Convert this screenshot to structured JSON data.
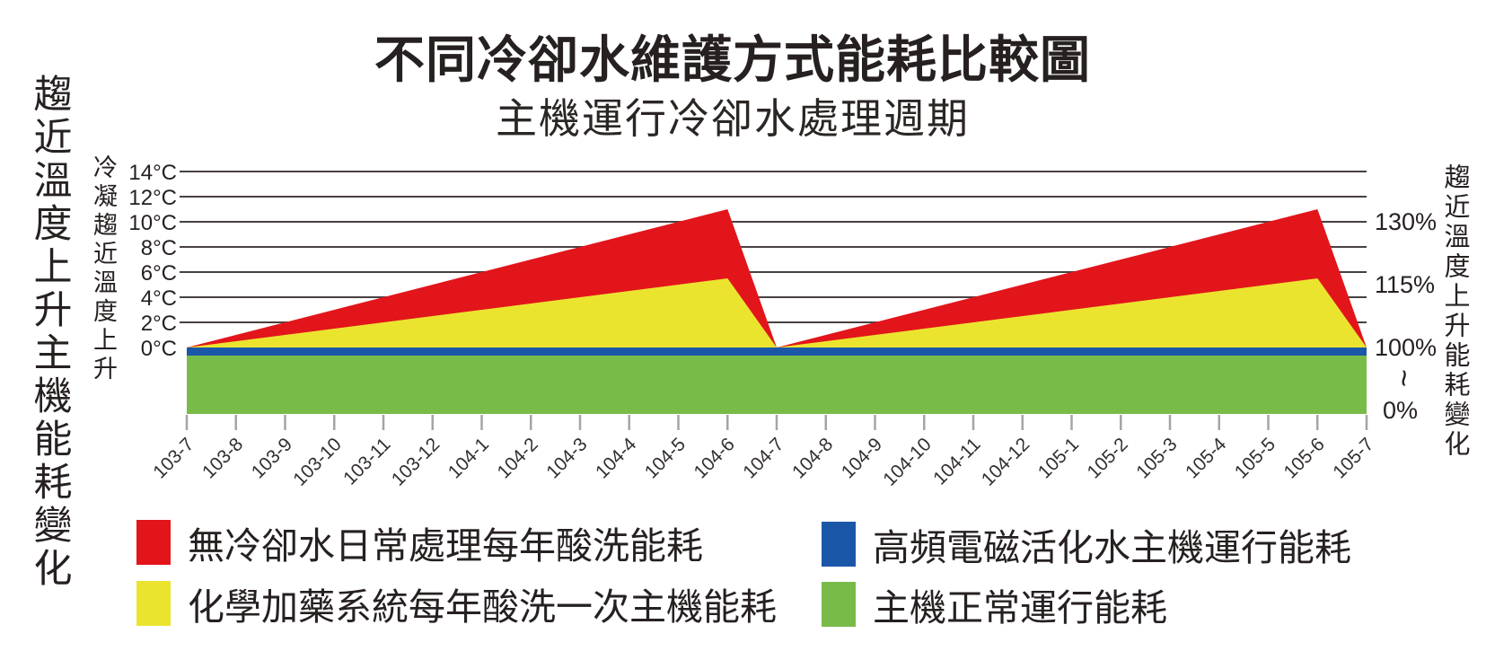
{
  "title": "不同冷卻水維護方式能耗比較圖",
  "subtitle": "主機運行冷卻水處理週期",
  "left_outer_label": "趨近溫度上升主機能耗變化",
  "left_axis": {
    "label": "冷凝趨近溫度上升",
    "unit": "°C",
    "ticks": [
      {
        "label": "14°C",
        "value": 14
      },
      {
        "label": "12°C",
        "value": 12
      },
      {
        "label": "10°C",
        "value": 10
      },
      {
        "label": "8°C",
        "value": 8
      },
      {
        "label": "6°C",
        "value": 6
      },
      {
        "label": "4°C",
        "value": 4
      },
      {
        "label": "2°C",
        "value": 2
      },
      {
        "label": "0°C",
        "value": 0
      }
    ]
  },
  "right_axis": {
    "label": "趨近溫度上升能耗變化",
    "ticks": [
      {
        "label": "130%",
        "value_c": 10
      },
      {
        "label": "115%",
        "value_c": 5
      },
      {
        "label": "100%",
        "value_c": 0
      },
      {
        "label": "~",
        "axis_break": true
      },
      {
        "label": "0%",
        "baseline_bottom": true
      }
    ],
    "note": "0°C approach = 100% energy, 5°C = 115%, 10°C = 130%; wavy mark = axis break between 0% and 100%"
  },
  "legend": [
    {
      "name": "acid-wash-no-treatment",
      "color": "#e2151b",
      "label": "無冷卻水日常處理每年酸洗能耗"
    },
    {
      "name": "chemical-dosing-yearly-acid-wash",
      "color": "#ebe42f",
      "label": "化學加藥系統每年酸洗一次主機能耗"
    },
    {
      "name": "hf-electromagnetic-activated-water",
      "color": "#1b57a8",
      "label": "高頻電磁活化水主機運行能耗"
    },
    {
      "name": "normal-operation",
      "color": "#79bb48",
      "label": "主機正常運行能耗"
    }
  ],
  "colors": {
    "red": "#e2151b",
    "yellow": "#ebe42f",
    "blue": "#1b57a8",
    "green": "#79bb48",
    "gridline": "#474140",
    "tick": "#a6a4a5",
    "x_label": "#332f2e",
    "text": "#262120"
  },
  "chart_data": {
    "type": "area",
    "title": "不同冷卻水維護方式能耗比較圖",
    "subtitle": "主機運行冷卻水處理週期",
    "x": [
      "103-7",
      "103-8",
      "103-9",
      "103-10",
      "103-11",
      "103-12",
      "104-1",
      "104-2",
      "104-3",
      "104-4",
      "104-5",
      "104-6",
      "104-7",
      "104-8",
      "104-9",
      "104-10",
      "104-11",
      "104-12",
      "105-1",
      "105-2",
      "105-3",
      "105-4",
      "105-5",
      "105-6",
      "105-7"
    ],
    "xlabel": "",
    "y_left": {
      "label": "冷凝趨近溫度上升",
      "unit": "°C",
      "min": 0,
      "max": 14,
      "step": 2
    },
    "y_right": {
      "label": "趨近溫度上升能耗變化",
      "unit": "%",
      "tick_labels": [
        "130%",
        "115%",
        "100%",
        "~",
        "0%"
      ]
    },
    "grid": "horizontal only, every 2°C from 2 to 14",
    "legend_position": "bottom, two columns",
    "series": [
      {
        "name": "無冷卻水日常處理每年酸洗能耗",
        "color_key": "red",
        "unit": "°C approach rise",
        "values": [
          0,
          1,
          2,
          3,
          4,
          5,
          6,
          7,
          8,
          9,
          10,
          11,
          0,
          1,
          2,
          3,
          4,
          5,
          6,
          7,
          8,
          9,
          10,
          11,
          0
        ],
        "peak_percent": "≈130%"
      },
      {
        "name": "化學加藥系統每年酸洗一次主機能耗",
        "color_key": "yellow",
        "unit": "°C approach rise",
        "values": [
          0,
          0.5,
          1,
          1.5,
          2,
          2.5,
          3,
          3.5,
          4,
          4.5,
          5,
          5.5,
          0,
          0.5,
          1,
          1.5,
          2,
          2.5,
          3,
          3.5,
          4,
          4.5,
          5,
          5.5,
          0
        ],
        "peak_percent": "≈115%"
      },
      {
        "name": "高頻電磁活化水主機運行能耗",
        "color_key": "blue",
        "unit": "%",
        "constant_percent": 100,
        "render": "thin horizontal band at 0°C / 100% baseline across full x range"
      },
      {
        "name": "主機正常運行能耗",
        "color_key": "green",
        "unit": "%",
        "band_percent": [
          0,
          100
        ],
        "render": "solid base band from bottom (0%) up to 100% baseline across full x range"
      }
    ]
  }
}
